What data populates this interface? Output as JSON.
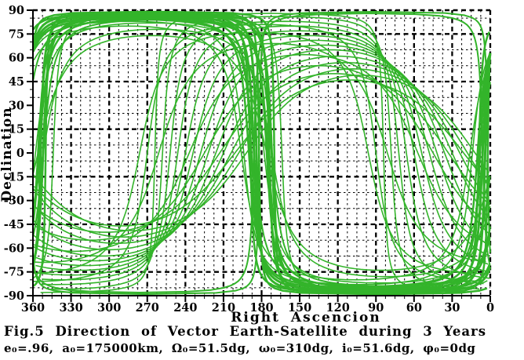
{
  "figure": {
    "caption_line1": "Fig.5 Direction of Vector Earth-Satellite during 3 Years",
    "caption_line2": "e₀=.96, a₀=175000km, Ω₀=51.5dg, ω₀=310dg, i₀=51.6dg, φ₀=0dg"
  },
  "chart_data": {
    "type": "line",
    "title": "Fig.5 Direction of Vector Earth-Satellite during 3 Years",
    "subtitle": "e0=.96, a0=175000km, Omega0=51.5dg, omega0=310dg, i0=51.6dg, phi0=0dg",
    "xlabel": "Right Ascencion",
    "ylabel": "Declination",
    "xlim": [
      360,
      0
    ],
    "ylim": [
      -90,
      90
    ],
    "x_axis_reversed": true,
    "x_tick_labels": [
      360,
      330,
      300,
      270,
      240,
      210,
      180,
      150,
      120,
      90,
      60,
      30,
      0
    ],
    "y_tick_labels": [
      90,
      75,
      60,
      45,
      30,
      15,
      0,
      -15,
      -30,
      -45,
      -60,
      -75,
      -90
    ],
    "x_major_step": 30,
    "x_minor_step": 7.5,
    "y_major_step": 15,
    "y_minor_step": 5,
    "grid": {
      "on": true,
      "style": "dashed",
      "row_start": 85,
      "row_step": 10,
      "bold_rows": [
        75,
        45,
        15,
        -15,
        -45,
        -75
      ],
      "col_step": 7.5,
      "bold_col_multiple": 30,
      "top_border_dec": 90,
      "right_border_ra": 0
    },
    "legend": "none",
    "colors": {
      "trace": "#33b42a",
      "axis": "#000000",
      "grid": "#000000",
      "background": "#ffffff"
    },
    "series_model": "great_circle_traces",
    "series_note": "Dense family of satellite direction traces over 3 years; each trace approximated as a great circle: dec=asin(sin(inc)*sin(u)), ra=node+atan2(cos(inc)*sin(u),cos(u)). Near-polar circles with nodes near RA 172-190 create the thick vertical bands at RA~352, RA~186 and RA~6 plus the top-left plateau at dec~85..89 (RA 190..360) and the bottom-right plateau at dec~-85..-89 (RA 10..190). Mid-inclination circles (nodes RA 12-96) create the descending arcs in the right half (peaks near RA 150-175, reaching dec~-80 near RA 10-30) and the nested U-shaped arcs in the lower-left (minima dec -45..-88 near RA 280-350).",
    "great_circles": [
      [
        89,
        170,
        2.5
      ],
      [
        87,
        172,
        3
      ],
      [
        88,
        174,
        3
      ],
      [
        86,
        176,
        2.5
      ],
      [
        84,
        172,
        2
      ],
      [
        85,
        175,
        2.5
      ],
      [
        89,
        182,
        2.5
      ],
      [
        88,
        184,
        3
      ],
      [
        87,
        186,
        3
      ],
      [
        86,
        188,
        2.5
      ],
      [
        85,
        190,
        2.5
      ],
      [
        84,
        186,
        2
      ],
      [
        88,
        189,
        2.5
      ],
      [
        87,
        164,
        1.6
      ],
      [
        82,
        178,
        1.6
      ],
      [
        78,
        172,
        1.6
      ],
      [
        74,
        176,
        1.6
      ],
      [
        83,
        194,
        1.6
      ],
      [
        80,
        196,
        1.6
      ],
      [
        89,
        2,
        2
      ],
      [
        88,
        6,
        2
      ],
      [
        86,
        78,
        1.6
      ],
      [
        83,
        72,
        1.6
      ],
      [
        80,
        66,
        1.6
      ],
      [
        77,
        60,
        1.6
      ],
      [
        74,
        54,
        1.6
      ],
      [
        71,
        48,
        1.6
      ],
      [
        68,
        42,
        1.6
      ],
      [
        65,
        36,
        1.6
      ],
      [
        61,
        30,
        1.6
      ],
      [
        57,
        24,
        1.6
      ],
      [
        53,
        18,
        1.6
      ],
      [
        49,
        12,
        1.6
      ],
      [
        88,
        84,
        1.6
      ],
      [
        81,
        90,
        1.6
      ],
      [
        76,
        96,
        1.6
      ],
      [
        69,
        81,
        1.6
      ],
      [
        62,
        57,
        1.6
      ],
      [
        55,
        45,
        1.6
      ],
      [
        50,
        33,
        1.6
      ],
      [
        46,
        21,
        1.6
      ]
    ]
  }
}
